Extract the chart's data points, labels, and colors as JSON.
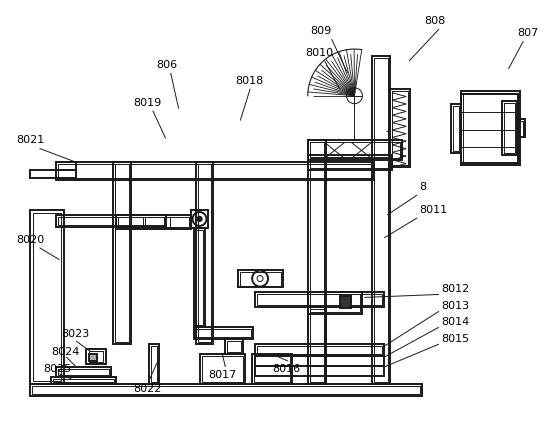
{
  "line_color": "#1a1a1a",
  "bg_color": "#ffffff",
  "lw": 1.4,
  "tlw": 0.7
}
